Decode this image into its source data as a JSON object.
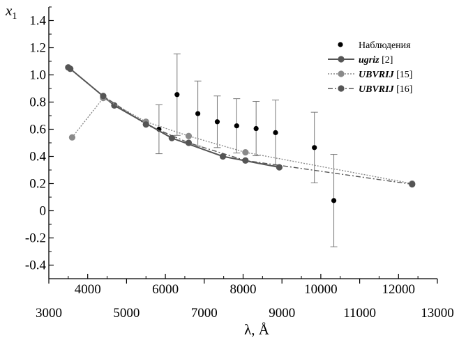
{
  "chart_data": {
    "type": "scatter",
    "y_axis_label": "x",
    "y_axis_label_sub": "1",
    "x_axis_label": "λ, Å",
    "ylim": [
      -0.5,
      1.5
    ],
    "yticks": [
      -0.4,
      -0.2,
      0,
      0.2,
      0.4,
      0.6,
      0.8,
      1.0,
      1.2,
      1.4
    ],
    "ytick_labels": [
      "-0.4",
      "-0.2",
      "0",
      "0.2",
      "0.4",
      "0.6",
      "0.8",
      "1.0",
      "1.2",
      "1.4"
    ],
    "top_x_axis": {
      "xlim": [
        3000,
        13000
      ],
      "ticks": [
        4000,
        6000,
        8000,
        10000,
        12000
      ],
      "tick_labels": [
        "4000",
        "6000",
        "8000",
        "10000",
        "12000"
      ]
    },
    "bottom_x_axis": {
      "xlim": [
        3000,
        13000
      ],
      "ticks": [
        3000,
        5000,
        7000,
        9000,
        11000,
        13000
      ],
      "tick_labels": [
        "3000",
        "5000",
        "7000",
        "9000",
        "11000",
        "13000"
      ]
    },
    "grid": false,
    "legend_position": "top-right",
    "series": [
      {
        "name": "Наблюдения",
        "style": "points-with-errorbars",
        "color": "#000000",
        "points": [
          {
            "x": 5835,
            "y": 0.6,
            "err": 0.18
          },
          {
            "x": 6300,
            "y": 0.855,
            "err": 0.3
          },
          {
            "x": 6835,
            "y": 0.715,
            "err": 0.24
          },
          {
            "x": 7335,
            "y": 0.655,
            "err": 0.19
          },
          {
            "x": 7835,
            "y": 0.625,
            "err": 0.2
          },
          {
            "x": 8335,
            "y": 0.605,
            "err": 0.2
          },
          {
            "x": 8835,
            "y": 0.575,
            "err": 0.24
          },
          {
            "x": 9835,
            "y": 0.465,
            "err": 0.26
          },
          {
            "x": 10335,
            "y": 0.075,
            "err": 0.34
          }
        ]
      },
      {
        "name": "ugriz",
        "name_ref": " [2]",
        "style": "solid",
        "color": "#555555",
        "points": [
          {
            "x": 3551,
            "y": 1.045
          },
          {
            "x": 4686,
            "y": 0.775
          },
          {
            "x": 6166,
            "y": 0.535
          },
          {
            "x": 7480,
            "y": 0.4
          },
          {
            "x": 8932,
            "y": 0.32
          }
        ]
      },
      {
        "name": "UBVRIJ",
        "name_ref": " [15]",
        "style": "dotted",
        "color": "#8a8a8a",
        "points": [
          {
            "x": 3600,
            "y": 0.54
          },
          {
            "x": 4400,
            "y": 0.83
          },
          {
            "x": 5500,
            "y": 0.655
          },
          {
            "x": 6600,
            "y": 0.55
          },
          {
            "x": 8060,
            "y": 0.43
          },
          {
            "x": 12350,
            "y": 0.2
          }
        ]
      },
      {
        "name": "UBVRIJ",
        "name_ref": " [16]",
        "style": "dash-dot",
        "color": "#555555",
        "points": [
          {
            "x": 3500,
            "y": 1.055
          },
          {
            "x": 4400,
            "y": 0.845
          },
          {
            "x": 5500,
            "y": 0.635
          },
          {
            "x": 6600,
            "y": 0.5
          },
          {
            "x": 8060,
            "y": 0.37
          },
          {
            "x": 12350,
            "y": 0.195
          }
        ]
      }
    ]
  }
}
